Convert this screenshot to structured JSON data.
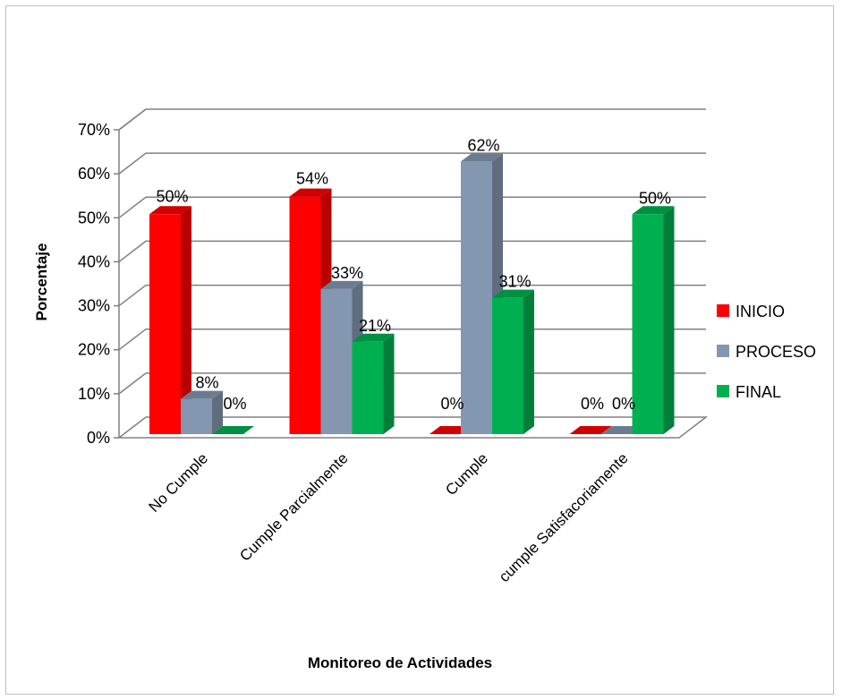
{
  "chart_data": {
    "type": "bar",
    "title": "",
    "xlabel": "Monitoreo de Actividades",
    "ylabel": "Porcentaje",
    "ylim": [
      0,
      70
    ],
    "yticks": [
      "0%",
      "10%",
      "20%",
      "30%",
      "40%",
      "50%",
      "60%",
      "70%"
    ],
    "categories": [
      "No Cumple",
      "Cumple Parcialmente",
      "Cumple",
      "cumple Satisfacoriamente"
    ],
    "series": [
      {
        "name": "INICIO",
        "color": "#ff0000",
        "values": [
          50,
          54,
          0,
          0
        ],
        "labels": [
          "50%",
          "54%",
          "0%",
          "0%"
        ]
      },
      {
        "name": "PROCESO",
        "color": "#8497b0",
        "values": [
          8,
          33,
          62,
          0
        ],
        "labels": [
          "8%",
          "33%",
          "62%",
          "0%"
        ]
      },
      {
        "name": "FINAL",
        "color": "#00b050",
        "values": [
          0,
          21,
          31,
          50
        ],
        "labels": [
          "0%",
          "21%",
          "31%",
          "50%"
        ]
      }
    ],
    "grid": true,
    "legend": "right",
    "style": "3d-clustered-column"
  }
}
